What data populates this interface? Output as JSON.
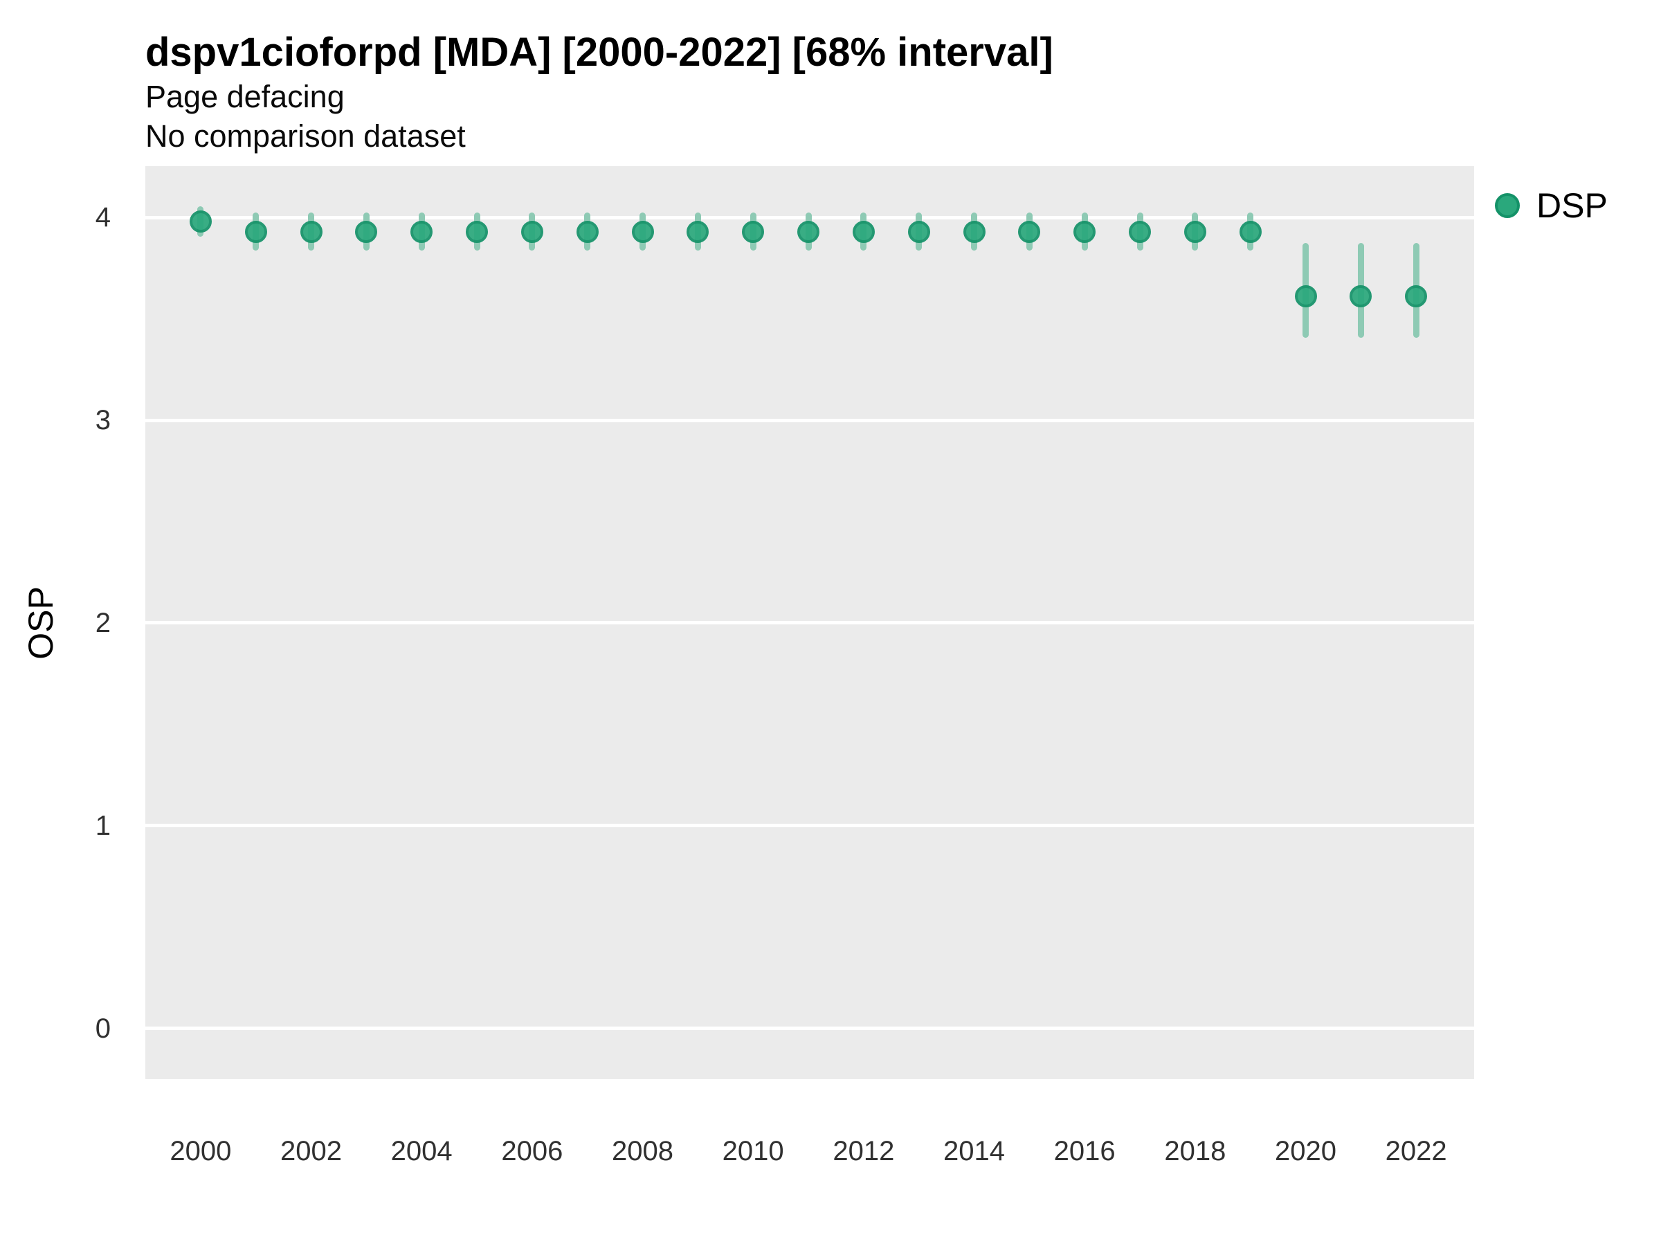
{
  "header": {
    "title": "dspv1cioforpd [MDA] [2000-2022] [68% interval]",
    "subtitle_line1": "Page defacing",
    "subtitle_line2": "No comparison dataset"
  },
  "y_axis": {
    "label": "OSP"
  },
  "legend": {
    "items": [
      {
        "label": "DSP",
        "color": "#2aa87c"
      }
    ]
  },
  "chart_data": {
    "type": "scatter",
    "title": "dspv1cioforpd [MDA] [2000-2022] [68% interval]",
    "subtitle": [
      "Page defacing",
      "No comparison dataset"
    ],
    "xlabel": "",
    "ylabel": "OSP",
    "interval_label": "68% interval",
    "legend_position": "right",
    "grid": "horizontal major gridlines only",
    "xlim": [
      1999.0,
      2023.05
    ],
    "ylim": [
      -0.25,
      4.253
    ],
    "x_ticks": [
      2000,
      2002,
      2004,
      2006,
      2008,
      2010,
      2012,
      2014,
      2016,
      2018,
      2020,
      2022
    ],
    "y_ticks": [
      0,
      1,
      2,
      3,
      4
    ],
    "series": [
      {
        "name": "DSP",
        "x": [
          2000,
          2001,
          2002,
          2003,
          2004,
          2005,
          2006,
          2007,
          2008,
          2009,
          2010,
          2011,
          2012,
          2013,
          2014,
          2015,
          2016,
          2017,
          2018,
          2019,
          2020,
          2021,
          2022
        ],
        "y": [
          3.98,
          3.93,
          3.93,
          3.93,
          3.93,
          3.93,
          3.93,
          3.93,
          3.93,
          3.93,
          3.93,
          3.93,
          3.93,
          3.93,
          3.93,
          3.93,
          3.93,
          3.93,
          3.93,
          3.93,
          3.61,
          3.61,
          3.61
        ],
        "y_low": [
          3.92,
          3.85,
          3.85,
          3.85,
          3.85,
          3.85,
          3.85,
          3.85,
          3.85,
          3.85,
          3.85,
          3.85,
          3.85,
          3.85,
          3.85,
          3.85,
          3.85,
          3.85,
          3.85,
          3.85,
          3.42,
          3.42,
          3.42
        ],
        "y_high": [
          4.04,
          4.01,
          4.01,
          4.01,
          4.01,
          4.01,
          4.01,
          4.01,
          4.01,
          4.01,
          4.01,
          4.01,
          4.01,
          4.01,
          4.01,
          4.01,
          4.01,
          4.01,
          4.01,
          4.01,
          3.86,
          3.86,
          3.86
        ]
      }
    ],
    "colors": {
      "point": "#2aa87c",
      "point_border": "#149268",
      "error_bar": "#8ecab4",
      "panel_bg": "#ebebeb",
      "gridline": "#ffffff"
    }
  }
}
